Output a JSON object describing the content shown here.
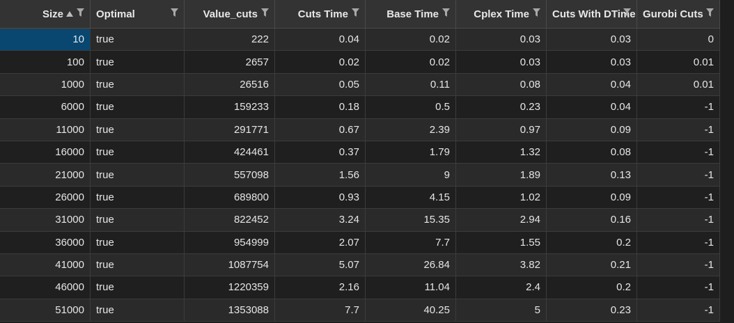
{
  "table": {
    "columns": [
      {
        "label": "Size",
        "sort": "ascending",
        "filter_icon": "filter-icon"
      },
      {
        "label": "Optimal",
        "filter_icon": "filter-icon"
      },
      {
        "label": "Value_cuts",
        "filter_icon": "filter-icon"
      },
      {
        "label": "Cuts Time",
        "filter_icon": "filter-icon"
      },
      {
        "label": "Base Time",
        "filter_icon": "filter-icon"
      },
      {
        "label": "Cplex Time",
        "filter_icon": "filter-icon"
      },
      {
        "label": "Cuts With DTime",
        "filter_icon": "filter-icon"
      },
      {
        "label": "Gurobi Cuts",
        "filter_icon": "filter-icon"
      }
    ],
    "rows": [
      [
        "10",
        "true",
        "222",
        "0.04",
        "0.02",
        "0.03",
        "0.03",
        "0"
      ],
      [
        "100",
        "true",
        "2657",
        "0.02",
        "0.02",
        "0.03",
        "0.03",
        "0.01"
      ],
      [
        "1000",
        "true",
        "26516",
        "0.05",
        "0.11",
        "0.08",
        "0.04",
        "0.01"
      ],
      [
        "6000",
        "true",
        "159233",
        "0.18",
        "0.5",
        "0.23",
        "0.04",
        "-1"
      ],
      [
        "11000",
        "true",
        "291771",
        "0.67",
        "2.39",
        "0.97",
        "0.09",
        "-1"
      ],
      [
        "16000",
        "true",
        "424461",
        "0.37",
        "1.79",
        "1.32",
        "0.08",
        "-1"
      ],
      [
        "21000",
        "true",
        "557098",
        "1.56",
        "9",
        "1.89",
        "0.13",
        "-1"
      ],
      [
        "26000",
        "true",
        "689800",
        "0.93",
        "4.15",
        "1.02",
        "0.09",
        "-1"
      ],
      [
        "31000",
        "true",
        "822452",
        "3.24",
        "15.35",
        "2.94",
        "0.16",
        "-1"
      ],
      [
        "36000",
        "true",
        "954999",
        "2.07",
        "7.7",
        "1.55",
        "0.2",
        "-1"
      ],
      [
        "41000",
        "true",
        "1087754",
        "5.07",
        "26.84",
        "3.82",
        "0.21",
        "-1"
      ],
      [
        "46000",
        "true",
        "1220359",
        "2.16",
        "11.04",
        "2.4",
        "0.2",
        "-1"
      ],
      [
        "51000",
        "true",
        "1353088",
        "7.7",
        "40.25",
        "5",
        "0.23",
        "-1"
      ]
    ],
    "selected_cell": {
      "row": 0,
      "col": 0
    },
    "colors": {
      "header_bg": "#333333",
      "row_odd_bg": "#2a2a2a",
      "row_even_bg": "#1f1f1f",
      "selected_bg": "#094771",
      "text": "#e6e6e6"
    }
  }
}
